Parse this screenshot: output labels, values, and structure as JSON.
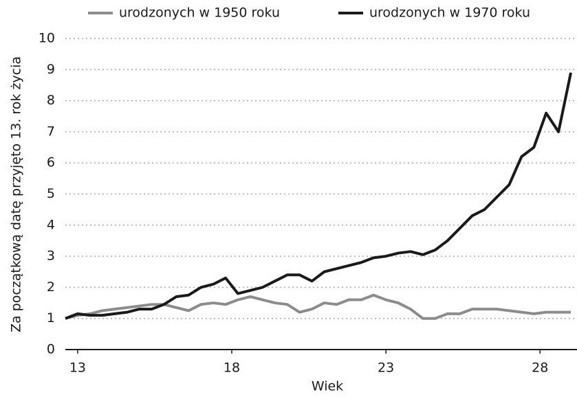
{
  "chart_data": {
    "type": "line",
    "xlabel": "Wiek",
    "ylabel": "Za początkową datę przyjęto 13. rok życia",
    "x": [
      12.6,
      13.0,
      13.4,
      13.8,
      14.2,
      14.6,
      15.0,
      15.4,
      15.8,
      16.2,
      16.6,
      17.0,
      17.4,
      17.8,
      18.2,
      18.6,
      19.0,
      19.4,
      19.8,
      20.2,
      20.6,
      21.0,
      21.4,
      21.8,
      22.2,
      22.6,
      23.0,
      23.4,
      23.8,
      24.2,
      24.6,
      25.0,
      25.4,
      25.8,
      26.2,
      26.6,
      27.0,
      27.4,
      27.8,
      28.2,
      28.6,
      29.0
    ],
    "series": [
      {
        "name": "urodzonych w 1950 roku",
        "color": "#8c8c8c",
        "values": [
          1.0,
          1.1,
          1.15,
          1.25,
          1.3,
          1.35,
          1.4,
          1.45,
          1.45,
          1.35,
          1.25,
          1.45,
          1.5,
          1.45,
          1.6,
          1.7,
          1.6,
          1.5,
          1.45,
          1.2,
          1.3,
          1.5,
          1.45,
          1.6,
          1.6,
          1.75,
          1.6,
          1.5,
          1.3,
          1.0,
          1.0,
          1.15,
          1.15,
          1.3,
          1.3,
          1.3,
          1.25,
          1.2,
          1.15,
          1.2,
          1.2,
          1.2
        ]
      },
      {
        "name": "urodzonych w 1970 roku",
        "color": "#1a1a1a",
        "values": [
          1.0,
          1.15,
          1.1,
          1.1,
          1.15,
          1.2,
          1.3,
          1.3,
          1.45,
          1.7,
          1.75,
          2.0,
          2.1,
          2.3,
          1.8,
          1.9,
          2.0,
          2.2,
          2.4,
          2.4,
          2.2,
          2.5,
          2.6,
          2.7,
          2.8,
          2.95,
          3.0,
          3.1,
          3.15,
          3.05,
          3.2,
          3.5,
          3.9,
          4.3,
          4.5,
          4.9,
          5.3,
          6.2,
          6.5,
          7.6,
          7.0,
          8.9
        ]
      }
    ],
    "xlim": [
      12.6,
      29.2
    ],
    "xticks": [
      13,
      18,
      23,
      28
    ],
    "ylim": [
      0,
      10
    ],
    "yticks": [
      0,
      1,
      2,
      3,
      4,
      5,
      6,
      7,
      8,
      9,
      10
    ],
    "grid": true,
    "legend": "top"
  }
}
